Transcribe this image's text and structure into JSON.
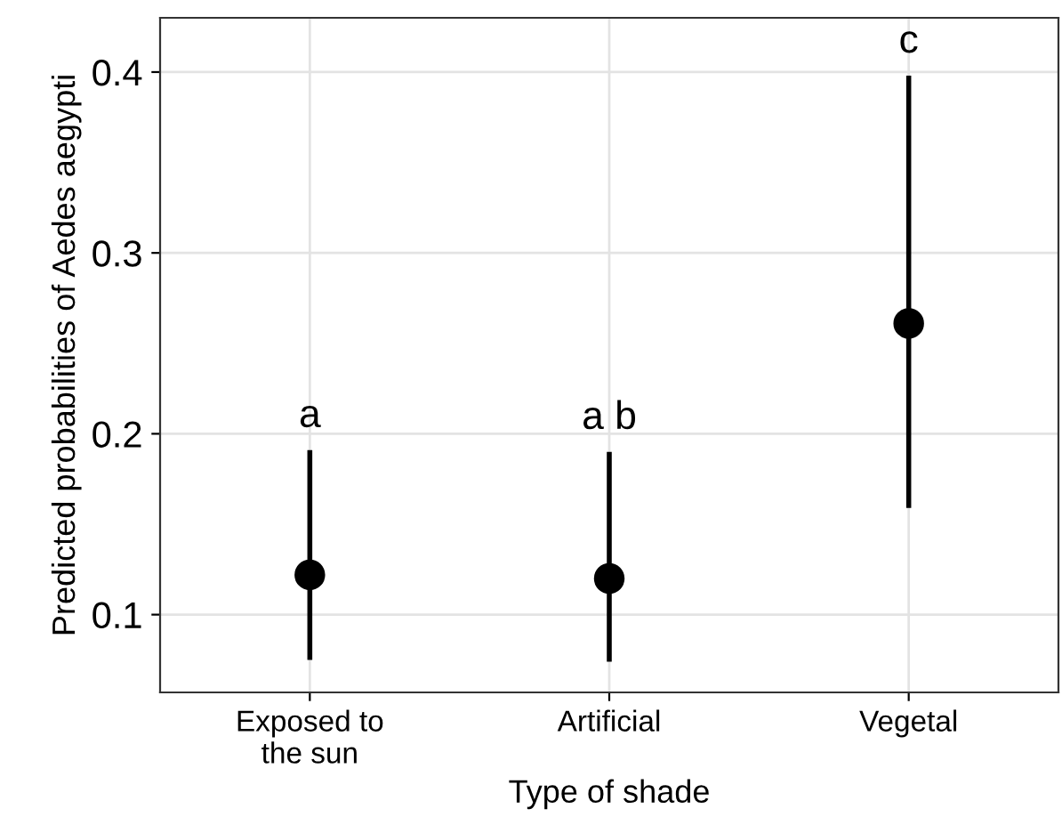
{
  "chart_data": {
    "type": "scatter",
    "xlabel": "Type of shade",
    "ylabel": "Predicted probabilities of Aedes aegypti",
    "categories": [
      "Exposed to\nthe sun",
      "Artificial",
      "Vegetal"
    ],
    "values": [
      0.122,
      0.12,
      0.261
    ],
    "errors": [
      [
        0.075,
        0.191
      ],
      [
        0.074,
        0.19
      ],
      [
        0.159,
        0.398
      ]
    ],
    "color": "#000000",
    "marker": "circle",
    "ylim": [
      0.057,
      0.43
    ],
    "yticks": [
      0.1,
      0.2,
      0.3,
      0.4
    ],
    "grid": true,
    "annotations": [
      "a",
      "a b",
      "c"
    ]
  }
}
